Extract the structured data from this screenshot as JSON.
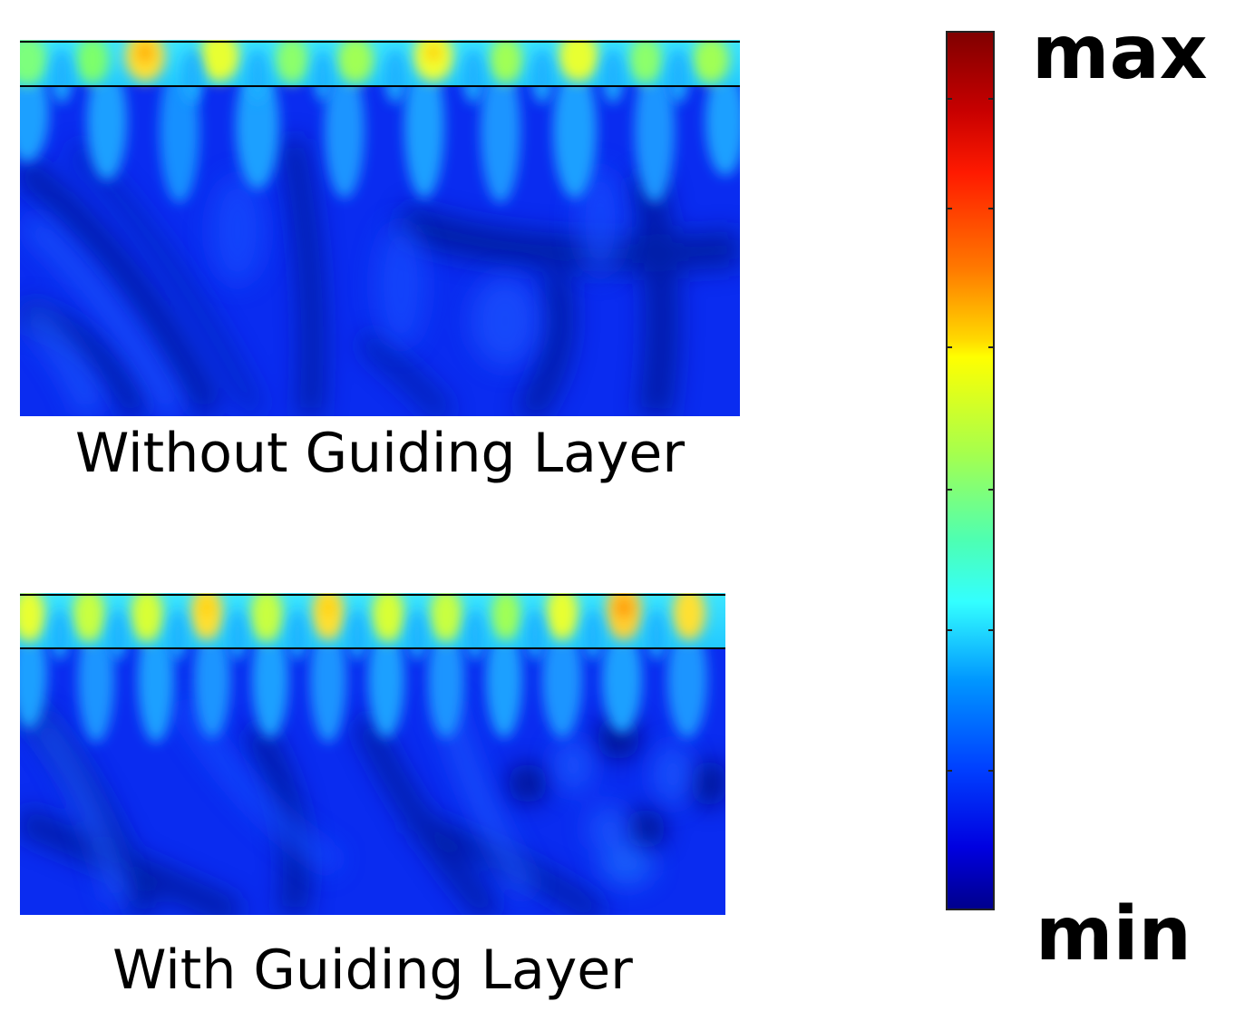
{
  "panels": [
    {
      "caption": "Without Guiding Layer"
    },
    {
      "caption": "With Guiding Layer"
    }
  ],
  "colorbar": {
    "max_label": "max",
    "min_label": "min",
    "colormap": "jet",
    "colors": {
      "low": "#00008c",
      "high": "#800000"
    }
  }
}
